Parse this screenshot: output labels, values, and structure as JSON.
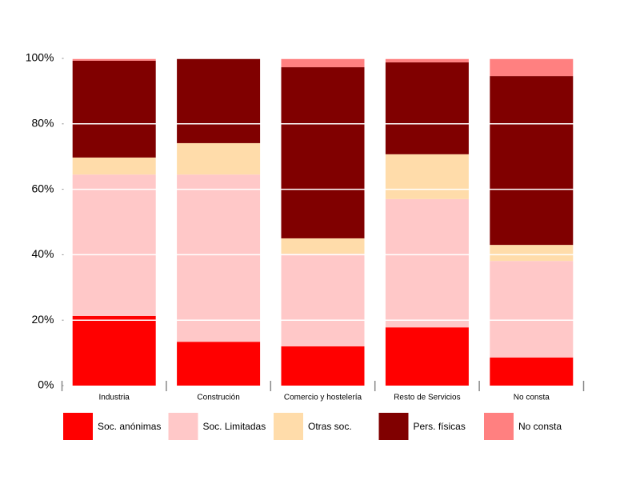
{
  "chart_data": {
    "type": "stacked-bar",
    "categories": [
      "Industria",
      "Construción",
      "Comercio y hostelería",
      "Resto de Servicios",
      "No consta"
    ],
    "series": [
      {
        "name": "Soc. anónimas",
        "color": "#ff0000",
        "values": [
          21.3,
          13.4,
          12.0,
          17.8,
          8.6
        ]
      },
      {
        "name": "Soc. Limitadas",
        "color": "#ffc8c8",
        "values": [
          43.2,
          51.1,
          28.3,
          39.2,
          29.5
        ]
      },
      {
        "name": "Otras soc.",
        "color": "#ffdcaa",
        "values": [
          5.2,
          9.6,
          4.7,
          13.7,
          4.9
        ]
      },
      {
        "name": "Pers. físicas",
        "color": "#800000",
        "values": [
          29.6,
          25.9,
          52.3,
          28.1,
          51.6
        ]
      },
      {
        "name": "No consta",
        "color": "#ff8080",
        "values": [
          0.7,
          0,
          2.7,
          1.2,
          5.4
        ]
      }
    ],
    "ylim": [
      0,
      100
    ],
    "yticks": [
      {
        "value": 0,
        "label": "0%"
      },
      {
        "value": 20,
        "label": "20%"
      },
      {
        "value": 40,
        "label": "40%"
      },
      {
        "value": 60,
        "label": "60%"
      },
      {
        "value": 80,
        "label": "80%"
      },
      {
        "value": 100,
        "label": "100%"
      }
    ],
    "grid": true
  }
}
